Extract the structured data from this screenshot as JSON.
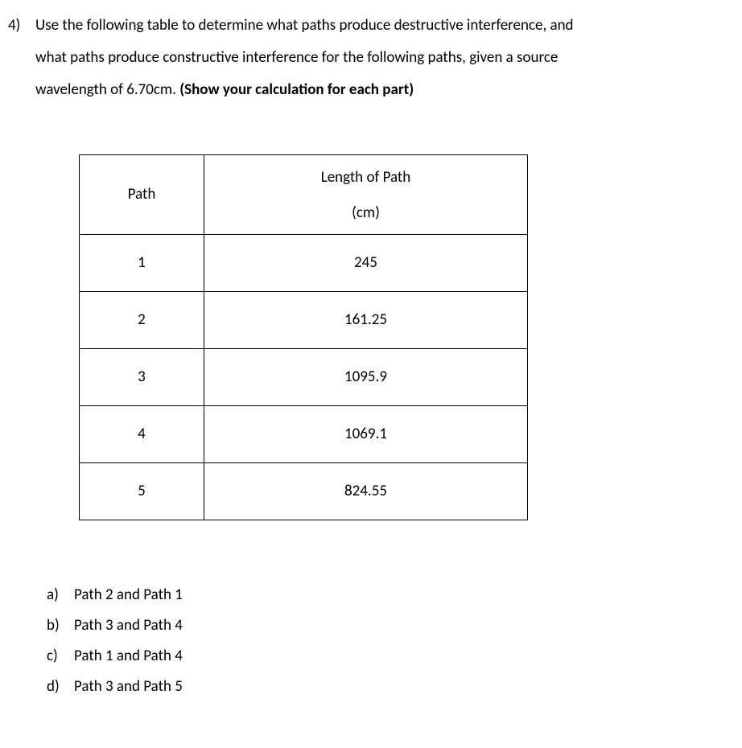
{
  "question": {
    "number": "4)",
    "text_line1": "Use the following table to determine what paths produce destructive interference, and",
    "text_line2": "what paths produce constructive interference for the following paths, given a source",
    "text_line3_plain": "wavelength of 6.70cm. ",
    "text_line3_bold": "(Show your calculation for each part)"
  },
  "table": {
    "header_path": "Path",
    "header_length_top": "Length of Path",
    "header_length_bottom": "(cm)",
    "rows": [
      {
        "path": "1",
        "length": "245"
      },
      {
        "path": "2",
        "length": "161.25"
      },
      {
        "path": "3",
        "length": "1095.9"
      },
      {
        "path": "4",
        "length": "1069.1"
      },
      {
        "path": "5",
        "length": "824.55"
      }
    ]
  },
  "subparts": [
    {
      "label": "a)",
      "text": "Path 2 and Path 1"
    },
    {
      "label": "b)",
      "text": "Path 3 and Path 4"
    },
    {
      "label": "c)",
      "text": "Path 1 and Path 4"
    },
    {
      "label": "d)",
      "text": "Path 3 and Path 5"
    }
  ]
}
